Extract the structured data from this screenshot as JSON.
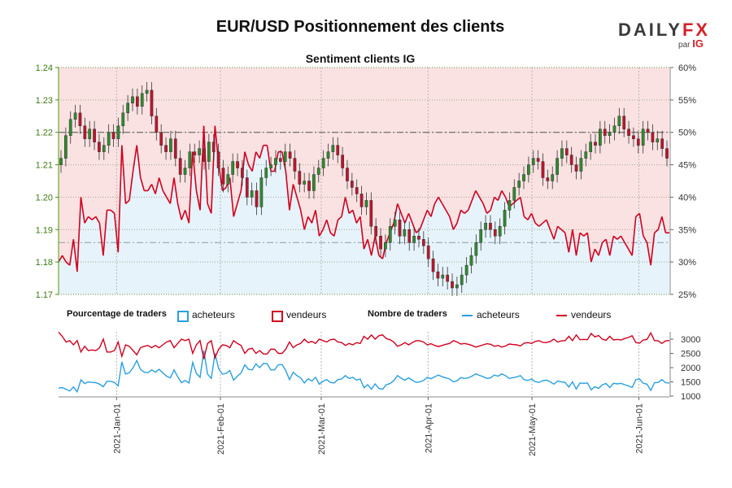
{
  "header": {
    "title": "EUR/USD Positionnement des clients",
    "logo_prefix": "DAILY",
    "logo_suffix": "FX",
    "logo_par": "par",
    "logo_ig": "IG"
  },
  "legend": {
    "pct_title": "Pourcentage de traders",
    "pct_buyers": "acheteurs",
    "pct_sellers": "vendeurs",
    "count_title": "Nombre de traders",
    "count_buyers": "acheteurs",
    "count_sellers": "vendeurs"
  },
  "colors": {
    "buyers": "#29a0e0",
    "sellers": "#d2001e",
    "candle_up": "#2e8b2e",
    "candle_down": "#c0142d",
    "buyers_fill": "#e6f3fb",
    "sellers_fill": "#fbe2e2"
  },
  "chart_data": [
    {
      "type": "candlestick+area",
      "title": "Sentiment clients IG",
      "y_left_ticks": [
        "1.17",
        "1.18",
        "1.19",
        "1.20",
        "1.21",
        "1.22",
        "1.23",
        "1.24"
      ],
      "y_left_range": [
        1.17,
        1.24
      ],
      "y_right_ticks": [
        "25%",
        "30%",
        "35%",
        "40%",
        "45%",
        "50%",
        "55%",
        "60%"
      ],
      "y_right_range": [
        25,
        60
      ],
      "x_tick_labels": [
        "2021-Jan-01",
        "2021-Feb-01",
        "2021-Mar-01",
        "2021-Apr-01",
        "2021-May-01",
        "2021-Jun-01"
      ],
      "reference_levels": {
        "percent_50": 50,
        "price_line": 1.186
      },
      "candles_close": [
        1.212,
        1.219,
        1.224,
        1.226,
        1.222,
        1.218,
        1.221,
        1.217,
        1.214,
        1.216,
        1.22,
        1.218,
        1.222,
        1.226,
        1.229,
        1.231,
        1.228,
        1.232,
        1.233,
        1.225,
        1.22,
        1.216,
        1.214,
        1.218,
        1.212,
        1.207,
        1.209,
        1.214,
        1.213,
        1.215,
        1.211,
        1.217,
        1.214,
        1.209,
        1.204,
        1.207,
        1.211,
        1.209,
        1.206,
        1.2,
        1.202,
        1.197,
        1.206,
        1.209,
        1.21,
        1.212,
        1.211,
        1.214,
        1.212,
        1.208,
        1.204,
        1.205,
        1.202,
        1.207,
        1.209,
        1.212,
        1.214,
        1.216,
        1.213,
        1.209,
        1.205,
        1.203,
        1.201,
        1.197,
        1.199,
        1.191,
        1.188,
        1.184,
        1.186,
        1.191,
        1.193,
        1.188,
        1.19,
        1.186,
        1.188,
        1.187,
        1.185,
        1.181,
        1.177,
        1.175,
        1.176,
        1.174,
        1.172,
        1.173,
        1.176,
        1.179,
        1.182,
        1.186,
        1.19,
        1.192,
        1.19,
        1.188,
        1.191,
        1.196,
        1.199,
        1.203,
        1.205,
        1.207,
        1.21,
        1.212,
        1.211,
        1.206,
        1.205,
        1.207,
        1.212,
        1.215,
        1.213,
        1.21,
        1.208,
        1.212,
        1.214,
        1.217,
        1.216,
        1.221,
        1.219,
        1.22,
        1.222,
        1.225,
        1.221,
        1.219,
        1.218,
        1.216,
        1.221,
        1.22,
        1.217,
        1.218,
        1.215,
        1.212
      ],
      "buyers_pct": [
        30,
        31,
        30,
        29.5,
        33.5,
        28.5,
        40,
        36,
        37,
        36.5,
        37,
        36,
        31,
        38,
        38,
        37.5,
        31.5,
        48,
        39,
        39.5,
        44,
        48,
        43,
        41,
        41,
        42,
        40.5,
        43,
        41,
        40,
        39,
        43,
        39,
        36.5,
        38,
        36,
        47,
        41,
        38,
        51,
        39,
        37.5,
        51,
        45,
        41,
        41.5,
        43,
        37,
        39,
        41,
        47,
        45,
        44,
        47,
        46,
        48,
        48,
        44,
        44,
        47,
        47,
        44,
        38,
        42,
        40,
        38,
        35,
        37,
        36,
        38,
        34,
        35,
        36.5,
        34.5,
        34,
        36.5,
        37,
        40,
        37.5,
        38,
        36,
        37,
        32,
        33.5,
        31,
        34,
        31,
        30.5,
        33,
        34.5,
        36,
        39,
        37.5,
        36,
        37.5,
        36,
        34.5,
        35,
        36.5,
        38,
        37,
        39,
        40,
        39,
        38,
        37,
        35,
        36,
        38,
        37.5,
        38,
        39.5,
        41,
        40,
        39,
        37.5,
        38,
        40,
        39.5,
        41,
        40,
        38.5,
        39,
        39.5,
        40,
        37,
        36.5,
        37.5,
        36,
        35.5,
        36,
        36.5,
        35,
        33.5,
        35.5,
        35,
        34.5,
        31.5,
        35,
        31,
        34.5,
        34,
        34.5,
        30,
        32,
        31,
        33,
        33.5,
        31,
        34,
        33.5,
        34,
        33,
        32,
        31,
        37,
        37.5,
        34,
        33,
        29.5,
        34.5,
        35,
        37,
        34.5,
        34.5
      ],
      "buyers_count": [
        1280,
        1300,
        1240,
        1180,
        1320,
        1150,
        1570,
        1440,
        1500,
        1480,
        1470,
        1420,
        1330,
        1520,
        1520,
        1480,
        1360,
        2200,
        1770,
        1820,
        2000,
        2250,
        1940,
        1840,
        1820,
        1920,
        1840,
        1940,
        1820,
        1700,
        1640,
        1920,
        1680,
        1470,
        1550,
        1460,
        2180,
        1800,
        1660,
        2600,
        1770,
        1620,
        2500,
        1960,
        1770,
        1800,
        1900,
        1560,
        1700,
        1810,
        2100,
        1940,
        1920,
        2130,
        2000,
        2150,
        2140,
        1920,
        1920,
        2100,
        2110,
        1900,
        1580,
        1840,
        1720,
        1640,
        1460,
        1610,
        1530,
        1660,
        1420,
        1520,
        1580,
        1480,
        1460,
        1580,
        1600,
        1720,
        1620,
        1660,
        1560,
        1600,
        1290,
        1400,
        1240,
        1430,
        1270,
        1240,
        1400,
        1440,
        1540,
        1720,
        1630,
        1560,
        1640,
        1560,
        1480,
        1500,
        1550,
        1660,
        1610,
        1680,
        1740,
        1680,
        1640,
        1600,
        1500,
        1540,
        1650,
        1620,
        1640,
        1700,
        1780,
        1730,
        1680,
        1620,
        1640,
        1740,
        1700,
        1780,
        1720,
        1620,
        1650,
        1670,
        1720,
        1580,
        1550,
        1600,
        1510,
        1480,
        1540,
        1560,
        1500,
        1420,
        1530,
        1500,
        1480,
        1320,
        1500,
        1250,
        1460,
        1450,
        1460,
        1220,
        1330,
        1270,
        1400,
        1440,
        1300,
        1450,
        1430,
        1450,
        1400,
        1360,
        1300,
        1580,
        1600,
        1450,
        1420,
        1200,
        1470,
        1480,
        1580,
        1470,
        1460
      ],
      "sellers_count": [
        3250,
        3100,
        2900,
        2950,
        2800,
        2950,
        2550,
        2750,
        2600,
        2620,
        2600,
        2700,
        3000,
        2550,
        2550,
        2600,
        2900,
        2400,
        2800,
        2750,
        2600,
        2450,
        2700,
        2750,
        2780,
        2700,
        2780,
        2700,
        2800,
        2900,
        2950,
        2700,
        2850,
        3000,
        2950,
        3000,
        2500,
        2800,
        2950,
        2300,
        2850,
        2950,
        2350,
        2650,
        2800,
        2780,
        2700,
        2950,
        2850,
        2780,
        2500,
        2650,
        2680,
        2500,
        2600,
        2480,
        2480,
        2650,
        2650,
        2500,
        2500,
        2650,
        2900,
        2700,
        2800,
        2850,
        3000,
        2880,
        2920,
        2850,
        3000,
        2950,
        2900,
        2980,
        3000,
        2900,
        2880,
        2780,
        2850,
        2800,
        2880,
        2850,
        3100,
        3000,
        3150,
        3000,
        3120,
        3150,
        3020,
        2980,
        2900,
        2750,
        2800,
        2880,
        2800,
        2880,
        2950,
        2940,
        2900,
        2800,
        2840,
        2780,
        2740,
        2780,
        2820,
        2850,
        2950,
        2900,
        2830,
        2850,
        2820,
        2780,
        2720,
        2760,
        2800,
        2840,
        2820,
        2750,
        2780,
        2720,
        2760,
        2830,
        2810,
        2800,
        2760,
        2860,
        2880,
        2850,
        2920,
        2950,
        2890,
        2880,
        2920,
        3000,
        2900,
        2940,
        2950,
        3100,
        2950,
        3150,
        2980,
        2990,
        2980,
        3200,
        3080,
        3130,
        3000,
        2960,
        3100,
        2970,
        2990,
        2970,
        3020,
        3060,
        3120,
        2880,
        2860,
        2970,
        2990,
        3220,
        2950,
        2940,
        2850,
        2940,
        2950
      ],
      "count_y_ticks": [
        "1000",
        "1500",
        "2000",
        "2500",
        "3000"
      ],
      "count_y_range": [
        1000,
        3000
      ]
    }
  ]
}
